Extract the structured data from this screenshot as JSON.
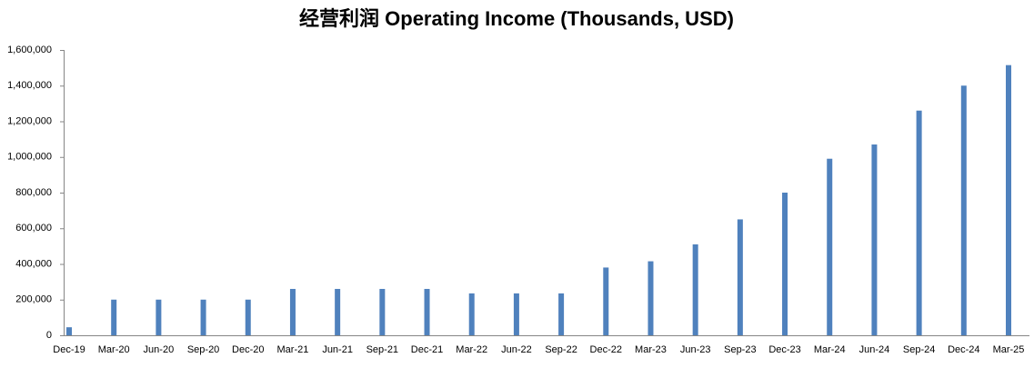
{
  "chart_data": {
    "type": "bar",
    "title": "经营利润 Operating Income (Thousands, USD)",
    "categories": [
      "Dec-19",
      "Mar-20",
      "Jun-20",
      "Sep-20",
      "Dec-20",
      "Mar-21",
      "Jun-21",
      "Sep-21",
      "Dec-21",
      "Mar-22",
      "Jun-22",
      "Sep-22",
      "Dec-22",
      "Mar-23",
      "Jun-23",
      "Sep-23",
      "Dec-23",
      "Mar-24",
      "Jun-24",
      "Sep-24",
      "Dec-24",
      "Mar-25"
    ],
    "values": [
      45000,
      200000,
      200000,
      200000,
      200000,
      260000,
      260000,
      260000,
      260000,
      235000,
      235000,
      235000,
      380000,
      415000,
      510000,
      650000,
      800000,
      990000,
      1070000,
      1260000,
      1400000,
      1515000
    ],
    "color": "#4f81bd",
    "ylim": [
      0,
      1600000
    ],
    "yticks": [
      0,
      {
        "value": 200000,
        "label": "200,000"
      },
      {
        "value": 400000,
        "label": "400,000"
      },
      {
        "value": 600000,
        "label": "600,000"
      },
      {
        "value": 800000,
        "label": "800,000"
      },
      {
        "value": 1000000,
        "label": "1,000,000"
      },
      {
        "value": 1200000,
        "label": "1,200,000"
      },
      {
        "value": 1400000,
        "label": "1,400,000"
      },
      {
        "value": 1600000,
        "label": "1,600,000"
      }
    ],
    "grid": false
  }
}
